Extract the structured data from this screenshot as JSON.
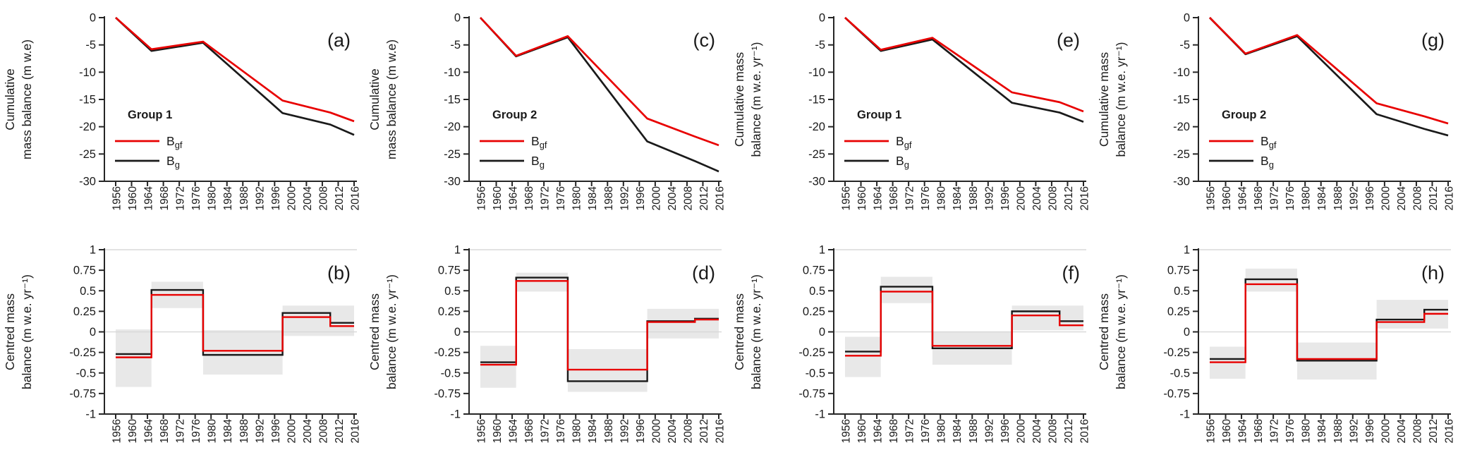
{
  "figure": {
    "background": "#ffffff",
    "layout": {
      "rows": [
        [
          "a",
          "c",
          "e",
          "g"
        ],
        [
          "b",
          "d",
          "f",
          "h"
        ]
      ]
    },
    "palette": {
      "red_series": "#e80000",
      "black_series": "#1a1a1a",
      "band_fill": "#e8e8e8",
      "gridline": "#d9d9d9",
      "axis": "#262626"
    }
  },
  "chart_data": [
    {
      "id": "a",
      "type": "line",
      "panel_label": "(a)",
      "title": "",
      "xlabel": "",
      "ylabel_lines": [
        "Cumulative",
        "mass balance (m w.e)"
      ],
      "ylim": [
        -30,
        0
      ],
      "yticks": [
        0,
        -5,
        -10,
        -15,
        -20,
        -25,
        -30
      ],
      "xticks": [
        1956,
        1960,
        1964,
        1968,
        1972,
        1976,
        1980,
        1984,
        1988,
        1992,
        1996,
        2000,
        2004,
        2008,
        2012,
        2016
      ],
      "legend": {
        "title": "Group 1",
        "position": "center-left",
        "entries": [
          {
            "base": "B",
            "sub": "gf",
            "color": "#e80000"
          },
          {
            "base": "B",
            "sub": "g",
            "color": "#1a1a1a"
          }
        ]
      },
      "x": [
        1956,
        1965,
        1978,
        1998,
        2010,
        2016
      ],
      "series": [
        {
          "name": "Bg",
          "color": "#1a1a1a",
          "values": [
            0,
            -6.1,
            -4.6,
            -17.5,
            -19.6,
            -21.5
          ]
        },
        {
          "name": "Bgf",
          "color": "#e80000",
          "values": [
            0,
            -5.8,
            -4.4,
            -15.2,
            -17.4,
            -19.0
          ]
        }
      ]
    },
    {
      "id": "c",
      "type": "line",
      "panel_label": "(c)",
      "title": "",
      "xlabel": "",
      "ylabel_lines": [
        "Cumulative",
        "mass balance (m w.e)"
      ],
      "ylim": [
        -30,
        0
      ],
      "yticks": [
        0,
        -5,
        -10,
        -15,
        -20,
        -25,
        -30
      ],
      "xticks": [
        1956,
        1960,
        1964,
        1968,
        1972,
        1976,
        1980,
        1984,
        1988,
        1992,
        1996,
        2000,
        2004,
        2008,
        2012,
        2016
      ],
      "legend": {
        "title": "Group 2",
        "position": "center-left",
        "entries": [
          {
            "base": "B",
            "sub": "gf",
            "color": "#e80000"
          },
          {
            "base": "B",
            "sub": "g",
            "color": "#1a1a1a"
          }
        ]
      },
      "x": [
        1956,
        1965,
        1978,
        1998,
        2010,
        2016
      ],
      "series": [
        {
          "name": "Bg",
          "color": "#1a1a1a",
          "values": [
            0,
            -7.1,
            -3.6,
            -22.7,
            -26.3,
            -28.2
          ]
        },
        {
          "name": "Bgf",
          "color": "#e80000",
          "values": [
            0,
            -7.0,
            -3.4,
            -18.5,
            -21.8,
            -23.4
          ]
        }
      ]
    },
    {
      "id": "e",
      "type": "line",
      "panel_label": "(e)",
      "title": "",
      "xlabel": "",
      "ylabel_lines": [
        "Cumulative mass",
        "balance (m w.e. yr⁻¹)"
      ],
      "ylim": [
        -30,
        0
      ],
      "yticks": [
        0,
        -5,
        -10,
        -15,
        -20,
        -25,
        -30
      ],
      "xticks": [
        1956,
        1960,
        1964,
        1968,
        1972,
        1976,
        1980,
        1984,
        1988,
        1992,
        1996,
        2000,
        2004,
        2008,
        2012,
        2016
      ],
      "legend": {
        "title": "Group 1",
        "position": "center-left",
        "entries": [
          {
            "base": "B",
            "sub": "gf",
            "color": "#e80000"
          },
          {
            "base": "B",
            "sub": "g",
            "color": "#1a1a1a"
          }
        ]
      },
      "x": [
        1956,
        1965,
        1978,
        1998,
        2010,
        2016
      ],
      "series": [
        {
          "name": "Bg",
          "color": "#1a1a1a",
          "values": [
            0,
            -6.1,
            -4.0,
            -15.6,
            -17.4,
            -19.1
          ]
        },
        {
          "name": "Bgf",
          "color": "#e80000",
          "values": [
            0,
            -5.9,
            -3.7,
            -13.7,
            -15.5,
            -17.2
          ]
        }
      ]
    },
    {
      "id": "g",
      "type": "line",
      "panel_label": "(g)",
      "title": "",
      "xlabel": "",
      "ylabel_lines": [
        "Cumulative mass",
        "balance (m w.e. yr⁻¹)"
      ],
      "ylim": [
        -30,
        0
      ],
      "yticks": [
        0,
        -5,
        -10,
        -15,
        -20,
        -25,
        -30
      ],
      "xticks": [
        1956,
        1960,
        1964,
        1968,
        1972,
        1976,
        1980,
        1984,
        1988,
        1992,
        1996,
        2000,
        2004,
        2008,
        2012,
        2016
      ],
      "legend": {
        "title": "Group 2",
        "position": "center-left",
        "entries": [
          {
            "base": "B",
            "sub": "gf",
            "color": "#e80000"
          },
          {
            "base": "B",
            "sub": "g",
            "color": "#1a1a1a"
          }
        ]
      },
      "x": [
        1956,
        1965,
        1978,
        1998,
        2010,
        2016
      ],
      "series": [
        {
          "name": "Bg",
          "color": "#1a1a1a",
          "values": [
            0,
            -6.7,
            -3.4,
            -17.7,
            -20.4,
            -21.6
          ]
        },
        {
          "name": "Bgf",
          "color": "#e80000",
          "values": [
            0,
            -6.6,
            -3.2,
            -15.7,
            -18.1,
            -19.4
          ]
        }
      ]
    },
    {
      "id": "b",
      "type": "step",
      "panel_label": "(b)",
      "title": "",
      "xlabel": "",
      "ylabel_lines": [
        "Centred mass",
        "balance (m w.e. yr⁻¹)"
      ],
      "ylim": [
        -1,
        1
      ],
      "yticks": [
        1,
        0.75,
        0.5,
        0.25,
        0,
        -0.25,
        -0.5,
        -0.75,
        -1
      ],
      "gridlines": [
        1,
        0
      ],
      "xticks": [
        1956,
        1960,
        1964,
        1968,
        1972,
        1976,
        1980,
        1984,
        1988,
        1992,
        1996,
        2000,
        2004,
        2008,
        2012,
        2016
      ],
      "boundaries": [
        1956,
        1965,
        1978,
        1998,
        2010,
        2016
      ],
      "bands": [
        {
          "x0": 1956,
          "x1": 1965,
          "lo": -0.67,
          "hi": 0.03
        },
        {
          "x0": 1965,
          "x1": 1978,
          "lo": 0.29,
          "hi": 0.61
        },
        {
          "x0": 1978,
          "x1": 1998,
          "lo": -0.52,
          "hi": 0.02
        },
        {
          "x0": 1998,
          "x1": 2016,
          "lo": -0.05,
          "hi": 0.32
        }
      ],
      "series": [
        {
          "name": "Bg",
          "color": "#1a1a1a",
          "values": [
            -0.27,
            0.51,
            -0.28,
            0.23,
            0.11
          ]
        },
        {
          "name": "Bgf",
          "color": "#e80000",
          "values": [
            -0.31,
            0.45,
            -0.23,
            0.18,
            0.07
          ]
        }
      ]
    },
    {
      "id": "d",
      "type": "step",
      "panel_label": "(d)",
      "title": "",
      "xlabel": "",
      "ylabel_lines": [
        "Centred mass",
        "balance (m w.e. yr⁻¹)"
      ],
      "ylim": [
        -1,
        1
      ],
      "yticks": [
        1,
        0.75,
        0.5,
        0.25,
        0,
        -0.25,
        -0.5,
        -0.75,
        -1
      ],
      "gridlines": [
        1,
        0
      ],
      "xticks": [
        1956,
        1960,
        1964,
        1968,
        1972,
        1976,
        1980,
        1984,
        1988,
        1992,
        1996,
        2000,
        2004,
        2008,
        2012,
        2016
      ],
      "boundaries": [
        1956,
        1965,
        1978,
        1998,
        2010,
        2016
      ],
      "bands": [
        {
          "x0": 1956,
          "x1": 1965,
          "lo": -0.68,
          "hi": -0.17
        },
        {
          "x0": 1965,
          "x1": 1978,
          "lo": 0.49,
          "hi": 0.72
        },
        {
          "x0": 1978,
          "x1": 1998,
          "lo": -0.73,
          "hi": -0.21
        },
        {
          "x0": 1998,
          "x1": 2016,
          "lo": -0.08,
          "hi": 0.28
        }
      ],
      "series": [
        {
          "name": "Bg",
          "color": "#1a1a1a",
          "values": [
            -0.37,
            0.66,
            -0.6,
            0.13,
            0.16
          ]
        },
        {
          "name": "Bgf",
          "color": "#e80000",
          "values": [
            -0.4,
            0.62,
            -0.46,
            0.12,
            0.15
          ]
        }
      ]
    },
    {
      "id": "f",
      "type": "step",
      "panel_label": "(f)",
      "title": "",
      "xlabel": "",
      "ylabel_lines": [
        "Centred mass",
        "balance (m w.e. yr⁻¹)"
      ],
      "ylim": [
        -1,
        1
      ],
      "yticks": [
        1,
        0.75,
        0.5,
        0.25,
        0,
        -0.25,
        -0.5,
        -0.75,
        -1
      ],
      "gridlines": [
        1,
        0
      ],
      "xticks": [
        1956,
        1960,
        1964,
        1968,
        1972,
        1976,
        1980,
        1984,
        1988,
        1992,
        1996,
        2000,
        2004,
        2008,
        2012,
        2016
      ],
      "boundaries": [
        1956,
        1965,
        1978,
        1998,
        2010,
        2016
      ],
      "bands": [
        {
          "x0": 1956,
          "x1": 1965,
          "lo": -0.55,
          "hi": -0.06
        },
        {
          "x0": 1965,
          "x1": 1978,
          "lo": 0.35,
          "hi": 0.67
        },
        {
          "x0": 1978,
          "x1": 1998,
          "lo": -0.4,
          "hi": 0.0
        },
        {
          "x0": 1998,
          "x1": 2016,
          "lo": 0.02,
          "hi": 0.32
        }
      ],
      "series": [
        {
          "name": "Bg",
          "color": "#1a1a1a",
          "values": [
            -0.24,
            0.55,
            -0.2,
            0.25,
            0.13
          ]
        },
        {
          "name": "Bgf",
          "color": "#e80000",
          "values": [
            -0.29,
            0.49,
            -0.17,
            0.2,
            0.08
          ]
        }
      ]
    },
    {
      "id": "h",
      "type": "step",
      "panel_label": "(h)",
      "title": "",
      "xlabel": "",
      "ylabel_lines": [
        "Centred mass",
        "balance (m w.e. yr⁻¹)"
      ],
      "ylim": [
        -1,
        1
      ],
      "yticks": [
        1,
        0.75,
        0.5,
        0.25,
        0,
        -0.25,
        -0.5,
        -0.75,
        -1
      ],
      "gridlines": [
        1,
        0
      ],
      "xticks": [
        1956,
        1960,
        1964,
        1968,
        1972,
        1976,
        1980,
        1984,
        1988,
        1992,
        1996,
        2000,
        2004,
        2008,
        2012,
        2016
      ],
      "boundaries": [
        1956,
        1965,
        1978,
        1998,
        2010,
        2016
      ],
      "bands": [
        {
          "x0": 1956,
          "x1": 1965,
          "lo": -0.57,
          "hi": -0.18
        },
        {
          "x0": 1965,
          "x1": 1978,
          "lo": 0.49,
          "hi": 0.77
        },
        {
          "x0": 1978,
          "x1": 1998,
          "lo": -0.58,
          "hi": -0.13
        },
        {
          "x0": 1998,
          "x1": 2016,
          "lo": 0.04,
          "hi": 0.39
        }
      ],
      "series": [
        {
          "name": "Bg",
          "color": "#1a1a1a",
          "values": [
            -0.33,
            0.64,
            -0.35,
            0.15,
            0.27
          ]
        },
        {
          "name": "Bgf",
          "color": "#e80000",
          "values": [
            -0.37,
            0.58,
            -0.33,
            0.12,
            0.22
          ]
        }
      ]
    }
  ]
}
